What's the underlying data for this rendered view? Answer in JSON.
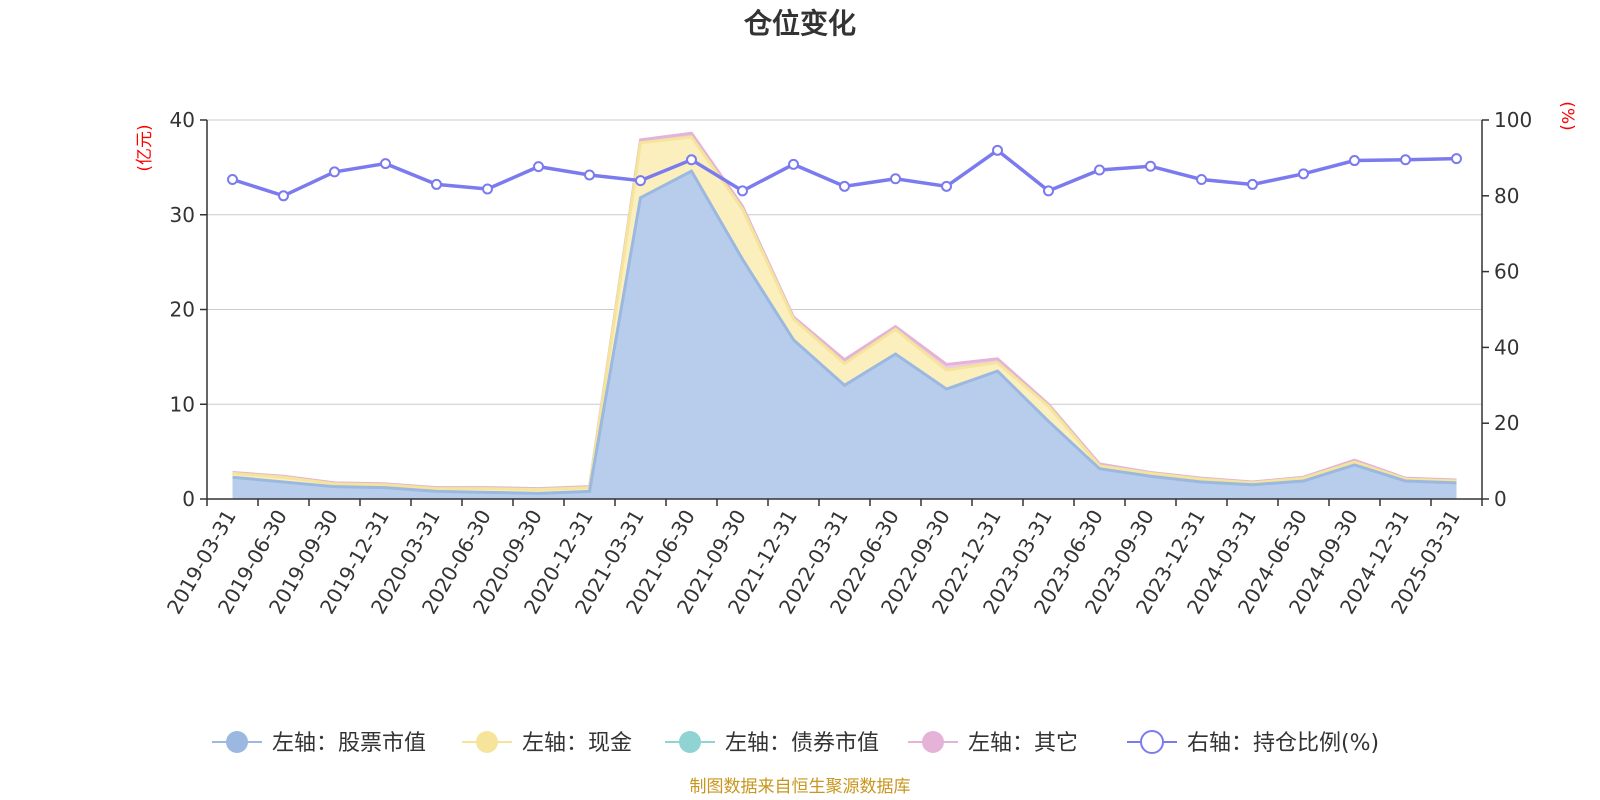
{
  "chart_data": {
    "type": "area",
    "title": "仓位变化",
    "source": "制图数据来自恒生聚源数据库",
    "categories": [
      "2019-03-31",
      "2019-06-30",
      "2019-09-30",
      "2019-12-31",
      "2020-03-31",
      "2020-06-30",
      "2020-09-30",
      "2020-12-31",
      "2021-03-31",
      "2021-06-30",
      "2021-09-30",
      "2021-12-31",
      "2022-03-31",
      "2022-06-30",
      "2022-09-30",
      "2022-12-31",
      "2023-03-31",
      "2023-06-30",
      "2023-09-30",
      "2023-12-31",
      "2024-03-31",
      "2024-06-30",
      "2024-09-30",
      "2024-12-31",
      "2025-03-31"
    ],
    "left_axis": {
      "unit": "(亿元)",
      "ylim": [
        0,
        40
      ],
      "ticks": [
        0,
        10,
        20,
        30,
        40
      ]
    },
    "right_axis": {
      "unit": "(%)",
      "ylim": [
        0,
        100
      ],
      "ticks": [
        0,
        20,
        40,
        60,
        80,
        100
      ]
    },
    "series": [
      {
        "name": "左轴：股票市值",
        "axis": "left",
        "color": "#9bb8e0",
        "fill": "#b8cdeb",
        "values": [
          2.3,
          1.8,
          1.3,
          1.2,
          0.8,
          0.7,
          0.6,
          0.8,
          31.8,
          34.6,
          25.3,
          16.8,
          12.0,
          15.3,
          11.6,
          13.5,
          8.2,
          3.2,
          2.4,
          1.8,
          1.5,
          1.9,
          3.6,
          1.9,
          1.7
        ]
      },
      {
        "name": "左轴：现金",
        "axis": "left",
        "color": "#f5e49a",
        "fill": "#fbefbe",
        "values": [
          0.4,
          0.5,
          0.3,
          0.3,
          0.3,
          0.4,
          0.4,
          0.4,
          5.8,
          3.6,
          5.3,
          2.2,
          2.3,
          2.6,
          2.0,
          0.9,
          1.6,
          0.3,
          0.3,
          0.3,
          0.2,
          0.3,
          0.3,
          0.2,
          0.2
        ]
      },
      {
        "name": "左轴：债券市值",
        "axis": "left",
        "color": "#8fd3d3",
        "fill": "#b3e3e3",
        "values": [
          0,
          0,
          0,
          0,
          0,
          0,
          0,
          0,
          0,
          0,
          0,
          0,
          0,
          0,
          0,
          0,
          0,
          0,
          0,
          0,
          0,
          0,
          0,
          0,
          0
        ]
      },
      {
        "name": "左轴：其它",
        "axis": "left",
        "color": "#e5b3d8",
        "fill": "#efcbe5",
        "values": [
          0.1,
          0.1,
          0.1,
          0.1,
          0.1,
          0.1,
          0.1,
          0.1,
          0.3,
          0.4,
          0.3,
          0.2,
          0.4,
          0.3,
          0.6,
          0.4,
          0.2,
          0.2,
          0.1,
          0.1,
          0.1,
          0.1,
          0.2,
          0.1,
          0.1
        ]
      },
      {
        "name": "右轴：持仓比例(%)",
        "axis": "right",
        "color": "#7b7bef",
        "type": "line",
        "values": [
          84.3,
          80.0,
          86.3,
          88.5,
          83.0,
          81.8,
          87.7,
          85.5,
          84.0,
          89.5,
          81.3,
          88.3,
          82.5,
          84.5,
          82.5,
          92.0,
          81.3,
          86.8,
          87.8,
          84.3,
          83.0,
          85.8,
          89.3,
          89.5,
          89.8
        ]
      }
    ]
  }
}
